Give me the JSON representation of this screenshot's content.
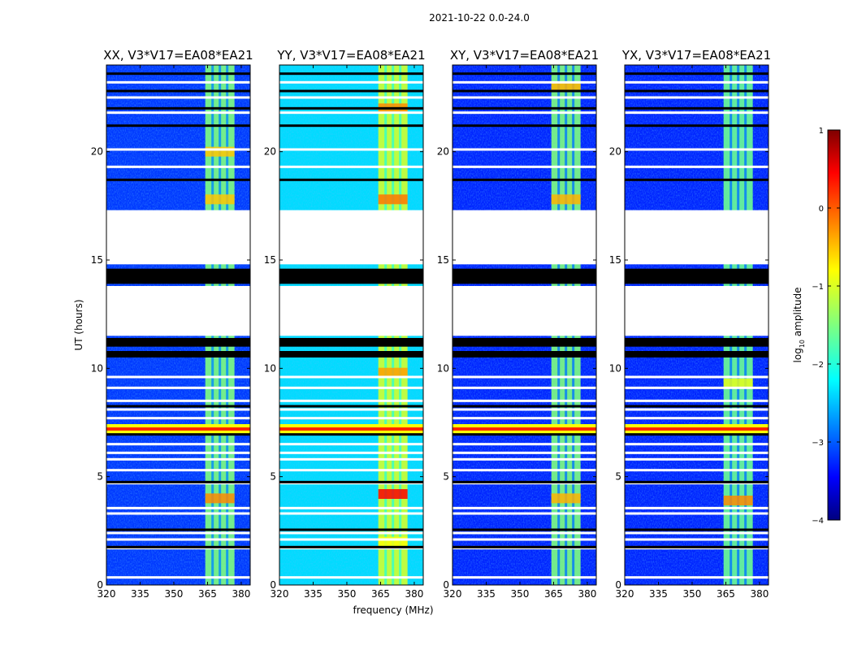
{
  "chart_data": {
    "type": "heatmap",
    "title": "2021-10-22 0.0-24.0",
    "xlabel": "frequency (MHz)",
    "ylabel": "UT (hours)",
    "xlim": [
      320,
      384
    ],
    "ylim": [
      0,
      24
    ],
    "x_ticks": [
      "320",
      "335",
      "350",
      "365",
      "380"
    ],
    "x_tick_values": [
      320,
      335,
      350,
      365,
      380
    ],
    "y_ticks": [
      "0",
      "5",
      "10",
      "15",
      "20"
    ],
    "y_tick_values": [
      0,
      5,
      10,
      15,
      20
    ],
    "colorbar": {
      "label": "log",
      "label_sub": "10",
      "label_rest": " amplitude",
      "range": [
        -4,
        1
      ],
      "ticks": [
        "1",
        "0",
        "−1",
        "−2",
        "−3",
        "−4"
      ],
      "tick_values": [
        1,
        0,
        -1,
        -2,
        -3,
        -4
      ],
      "colormap": "jet"
    },
    "panels": [
      {
        "id": "XX",
        "title": "XX, V3*V17=EA08*EA21",
        "band_level": -1.5,
        "band_spots": [
          [
            20.0,
            -0.6
          ],
          [
            17.8,
            -0.6
          ],
          [
            4.0,
            -0.3
          ]
        ],
        "low_band_level": -3.1
      },
      {
        "id": "YY",
        "title": "YY, V3*V17=EA08*EA21",
        "band_level": -1.1,
        "band_spots": [
          [
            22.0,
            -0.3
          ],
          [
            17.8,
            -0.2
          ],
          [
            9.8,
            -0.4
          ],
          [
            4.2,
            0.4
          ],
          [
            2.0,
            -0.9
          ]
        ],
        "low_band_level": -2.3
      },
      {
        "id": "XY",
        "title": "XY, V3*V17=EA08*EA21",
        "band_level": -1.5,
        "band_spots": [
          [
            23.0,
            -0.5
          ],
          [
            17.8,
            -0.5
          ],
          [
            4.0,
            -0.5
          ]
        ],
        "low_band_level": -3.2
      },
      {
        "id": "YX",
        "title": "YX, V3*V17=EA08*EA21",
        "band_level": -1.6,
        "band_spots": [
          [
            9.3,
            -1.0
          ],
          [
            3.9,
            -0.3
          ],
          [
            7.2,
            0.6
          ]
        ],
        "low_band_level": -3.2
      }
    ],
    "rfi_band_mhz": [
      364,
      377
    ],
    "bright_row_ut": 7.2,
    "gaps_white_ut": [
      [
        11.5,
        13.8
      ],
      [
        14.8,
        17.3
      ]
    ],
    "flag_black_ut": [
      [
        10.5,
        10.8
      ],
      [
        11.0,
        11.4
      ],
      [
        13.9,
        14.6
      ]
    ],
    "flag_white_rows_ut": [
      0.35,
      1.7,
      2.1,
      2.4,
      3.3,
      3.55,
      4.7,
      5.3,
      5.8,
      6.1,
      6.5,
      7.7,
      8.1,
      8.5,
      9.1,
      9.6,
      19.3,
      20.1,
      21.8,
      22.5,
      23.2
    ],
    "flag_black_rows_ut": [
      1.75,
      2.55,
      4.75,
      6.95,
      8.25,
      18.7,
      21.2,
      22.0,
      22.8,
      23.6
    ]
  }
}
